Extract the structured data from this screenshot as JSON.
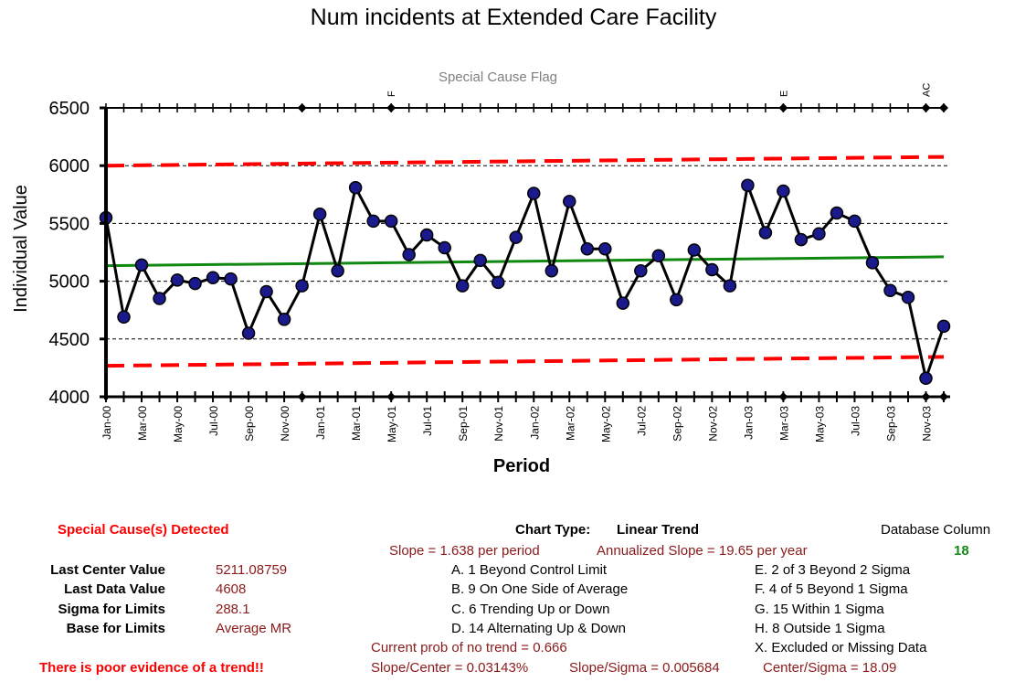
{
  "chart_data": {
    "type": "line",
    "title": "Num incidents at Extended Care Facility",
    "subtitle": "Special Cause Flag",
    "xlabel": "Period",
    "ylabel": "Individual Value",
    "ylim": [
      4000,
      6500
    ],
    "yticks": [
      4000,
      4500,
      5000,
      5500,
      6000,
      6500
    ],
    "x": [
      "Jan-00",
      "Feb-00",
      "Mar-00",
      "Apr-00",
      "May-00",
      "Jun-00",
      "Jul-00",
      "Aug-00",
      "Sep-00",
      "Oct-00",
      "Nov-00",
      "Dec-00",
      "Jan-01",
      "Feb-01",
      "Mar-01",
      "Apr-01",
      "May-01",
      "Jun-01",
      "Jul-01",
      "Aug-01",
      "Sep-01",
      "Oct-01",
      "Nov-01",
      "Dec-01",
      "Jan-02",
      "Feb-02",
      "Mar-02",
      "Apr-02",
      "May-02",
      "Jun-02",
      "Jul-02",
      "Aug-02",
      "Sep-02",
      "Oct-02",
      "Nov-02",
      "Dec-02",
      "Jan-03",
      "Feb-03",
      "Mar-03",
      "Apr-03",
      "May-03",
      "Jun-03",
      "Jul-03",
      "Aug-03",
      "Sep-03",
      "Oct-03",
      "Nov-03",
      "Dec-03"
    ],
    "xtick_labels": [
      "Jan-00",
      "Mar-00",
      "May-00",
      "Jul-00",
      "Sep-00",
      "Nov-00",
      "Jan-01",
      "Mar-01",
      "May-01",
      "Jul-01",
      "Sep-01",
      "Nov-01",
      "Jan-02",
      "Mar-02",
      "May-02",
      "Jul-02",
      "Sep-02",
      "Nov-02",
      "Jan-03",
      "Mar-03",
      "May-03",
      "Jul-03",
      "Sep-03",
      "Nov-03"
    ],
    "series": [
      {
        "name": "Individual Value",
        "values": [
          5550,
          4690,
          5140,
          4850,
          5010,
          4980,
          5030,
          5020,
          4550,
          4910,
          4670,
          4960,
          5580,
          5090,
          5810,
          5520,
          5520,
          5230,
          5400,
          5290,
          4960,
          5180,
          4990,
          5380,
          5760,
          5090,
          5690,
          5280,
          5280,
          4810,
          5090,
          5220,
          4840,
          5270,
          5100,
          4960,
          5830,
          5420,
          5780,
          5360,
          5410,
          5590,
          5520,
          5160,
          4920,
          4860,
          4160,
          4610
        ]
      },
      {
        "name": "Center Line (Linear Trend)",
        "start": 5134,
        "end": 5211
      },
      {
        "name": "Upper Control Limit",
        "start": 6000,
        "end": 6076
      },
      {
        "name": "Lower Control Limit",
        "start": 4268,
        "end": 4345
      }
    ],
    "special_cause_flags": [
      {
        "period": "May-01",
        "label": "F"
      },
      {
        "period": "Mar-03",
        "label": "E"
      },
      {
        "period": "Nov-03",
        "label": "AC"
      }
    ],
    "flag_marker_periods": [
      "Dec-00",
      "May-01",
      "Mar-03",
      "Nov-03",
      "Dec-03"
    ]
  },
  "summary": {
    "special_causes": "Special Cause(s) Detected",
    "chart_type_label": "Chart Type:",
    "chart_type_value": "Linear Trend",
    "database_column_label": "Database Column",
    "database_column_value": "18",
    "slope": "Slope = 1.638 per period",
    "annualized_slope": "Annualized Slope = 19.65 per year",
    "last_center_label": "Last Center Value",
    "last_center_value": "5211.08759",
    "last_data_label": "Last Data Value",
    "last_data_value": "4608",
    "sigma_label": "Sigma for Limits",
    "sigma_value": "288.1",
    "base_label": "Base for Limits",
    "base_value": "Average MR",
    "rules": {
      "A": "A.  1 Beyond Control Limit",
      "B": "B.  9 On One Side of Average",
      "C": "C.  6 Trending Up or Down",
      "D": "D.  14 Alternating  Up & Down",
      "E": "E.  2 of 3 Beyond 2 Sigma",
      "F": "F.  4 of 5 Beyond 1 Sigma",
      "G": "G.  15 Within 1 Sigma",
      "H": "H.  8 Outside 1 Sigma",
      "X": "X.  Excluded or Missing Data"
    },
    "prob_no_trend": "Current prob of no trend = 0.666",
    "trend_evidence": "There is poor evidence of a trend!!",
    "slope_center": "Slope/Center = 0.03143%",
    "slope_sigma": "Slope/Sigma = 0.005684",
    "center_sigma": "Center/Sigma = 18.09"
  }
}
